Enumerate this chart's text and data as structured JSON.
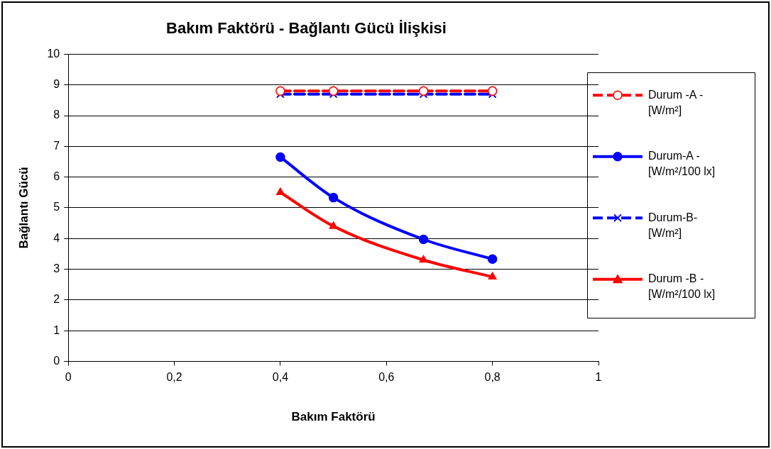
{
  "chart_data": {
    "type": "line",
    "title": "Bakım Faktörü - Bağlantı Gücü İlişkisi",
    "xlabel": "Bakım Faktörü",
    "ylabel": "Bağlantı Gücü",
    "x": [
      0.4,
      0.5,
      0.67,
      0.8
    ],
    "series": [
      {
        "name": "Durum -A - [W/m²]",
        "color": "#ff0000",
        "values": [
          8.8,
          8.8,
          8.8,
          8.8
        ],
        "marker": "circle",
        "line_style": "dashed"
      },
      {
        "name": "Durum-A - [W/m²/100 lx]",
        "color": "#0000ff",
        "values": [
          6.65,
          5.33,
          3.97,
          3.33
        ],
        "marker": "circle",
        "line_style": "solid"
      },
      {
        "name": "Durum-B- [W/m²]",
        "color": "#0000ff",
        "values": [
          8.7,
          8.7,
          8.7,
          8.7
        ],
        "marker": "cross",
        "line_style": "dashed"
      },
      {
        "name": "Durum -B - [W/m²/100 lx]",
        "color": "#ff0000",
        "values": [
          5.5,
          4.4,
          3.3,
          2.75
        ],
        "marker": "triangle",
        "line_style": "solid"
      }
    ],
    "xlim": [
      0,
      1
    ],
    "xticks": [
      {
        "value": 0,
        "label": "0"
      },
      {
        "value": 0.2,
        "label": "0,2"
      },
      {
        "value": 0.4,
        "label": "0,4"
      },
      {
        "value": 0.6,
        "label": "0,6"
      },
      {
        "value": 0.8,
        "label": "0,8"
      },
      {
        "value": 1,
        "label": "1"
      }
    ],
    "ylim": [
      0,
      10
    ],
    "yticks": [
      0,
      1,
      2,
      3,
      4,
      5,
      6,
      7,
      8,
      9,
      10
    ],
    "grid": "y",
    "legend": "right"
  }
}
